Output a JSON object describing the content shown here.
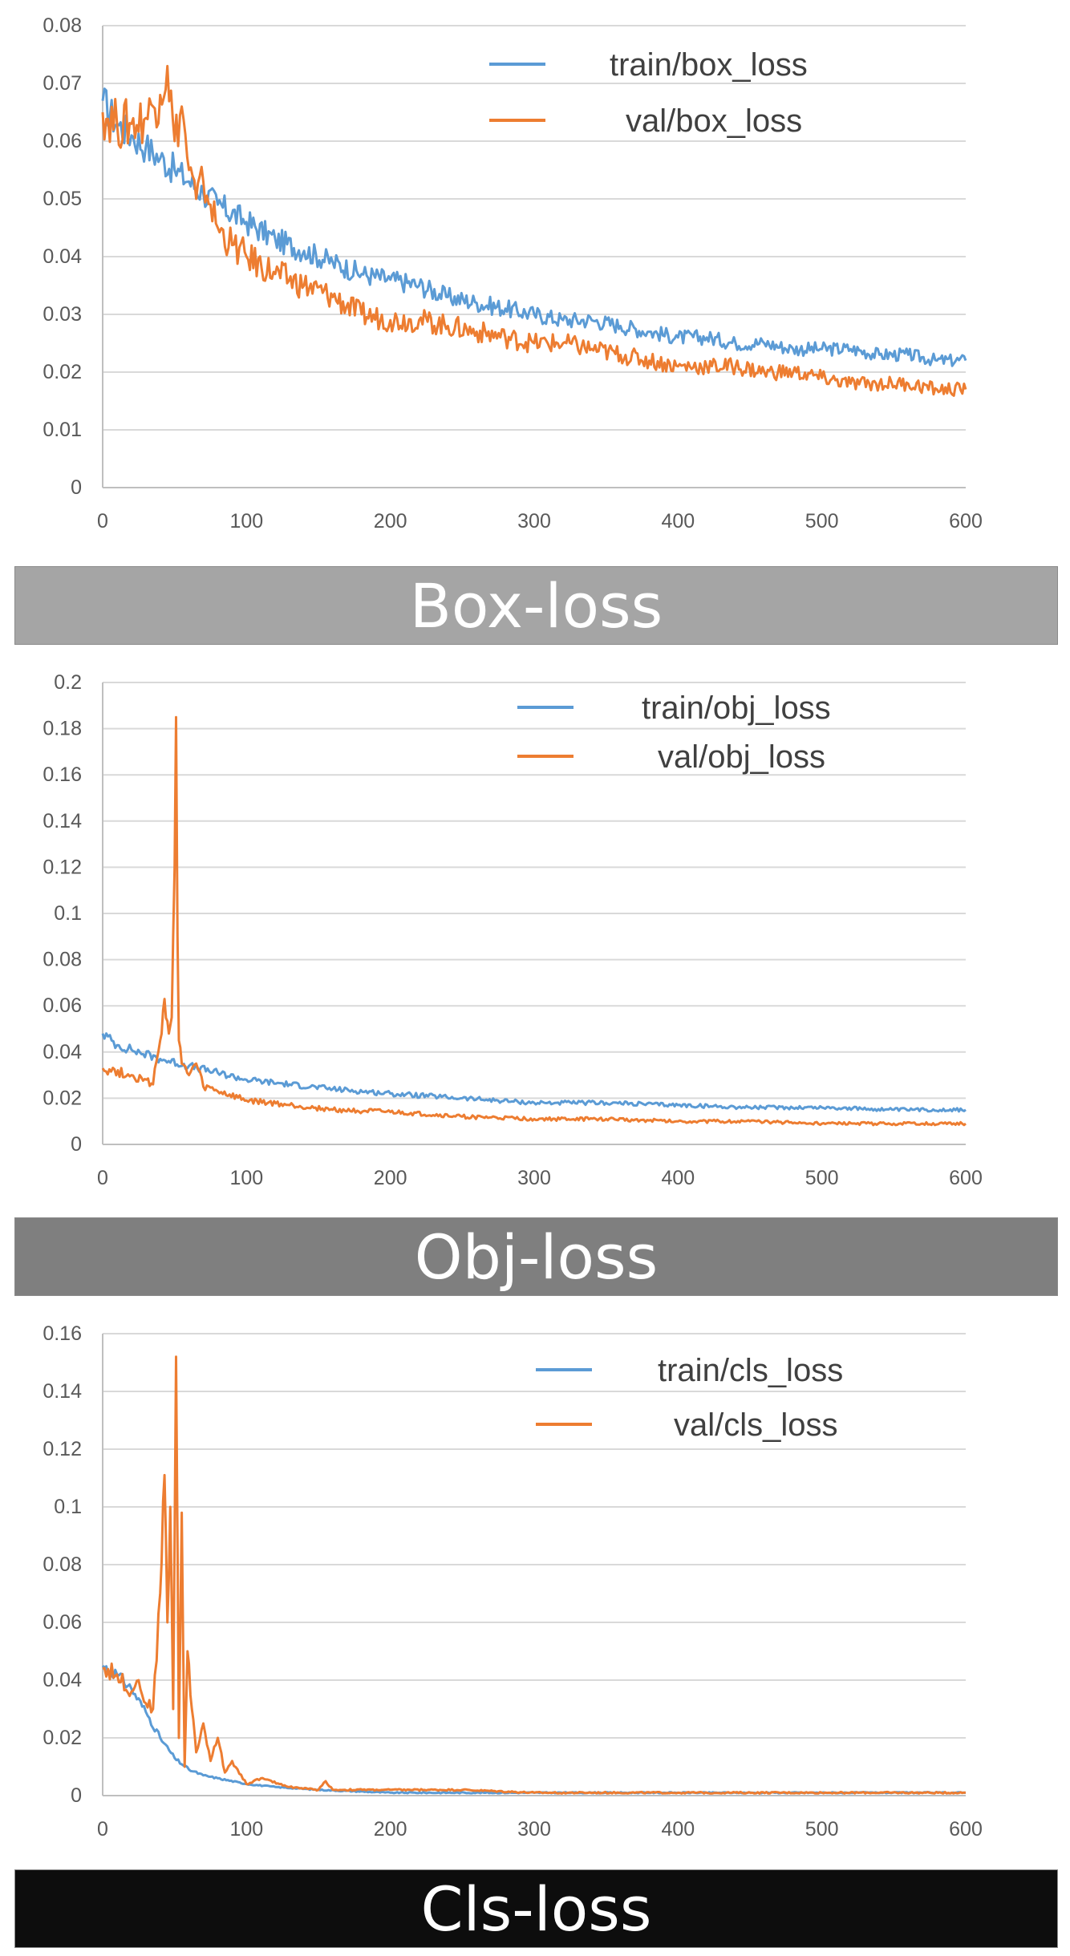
{
  "colors": {
    "train": "#5b9bd5",
    "val": "#ed7d31",
    "grid": "#d9d9d9",
    "axis": "#bfbfbf"
  },
  "chart_data": [
    {
      "type": "line",
      "title": "Box-loss",
      "banner_color": "#a5a5a5",
      "xlim": [
        0,
        600
      ],
      "ylim": [
        0,
        0.08
      ],
      "x_ticks": [
        "0",
        "100",
        "200",
        "300",
        "400",
        "500",
        "600"
      ],
      "y_ticks": [
        "0",
        "0.01",
        "0.02",
        "0.03",
        "0.04",
        "0.05",
        "0.06",
        "0.07",
        "0.08"
      ],
      "series": [
        {
          "name": "train/box_loss",
          "color": "#5b9bd5",
          "x": [
            0,
            10,
            20,
            30,
            40,
            50,
            60,
            70,
            80,
            100,
            120,
            140,
            160,
            180,
            200,
            220,
            240,
            260,
            280,
            300,
            320,
            340,
            360,
            380,
            400,
            420,
            440,
            460,
            480,
            500,
            520,
            540,
            560,
            580,
            600
          ],
          "y": [
            0.067,
            0.063,
            0.061,
            0.059,
            0.057,
            0.055,
            0.053,
            0.051,
            0.049,
            0.046,
            0.043,
            0.041,
            0.039,
            0.037,
            0.036,
            0.035,
            0.033,
            0.032,
            0.031,
            0.03,
            0.029,
            0.029,
            0.028,
            0.027,
            0.026,
            0.026,
            0.025,
            0.025,
            0.024,
            0.024,
            0.024,
            0.023,
            0.023,
            0.022,
            0.022
          ]
        },
        {
          "name": "val/box_loss",
          "color": "#ed7d31",
          "x": [
            0,
            10,
            20,
            30,
            35,
            40,
            45,
            50,
            55,
            60,
            65,
            70,
            75,
            80,
            90,
            100,
            120,
            140,
            160,
            180,
            200,
            220,
            240,
            260,
            280,
            300,
            320,
            340,
            360,
            380,
            400,
            420,
            440,
            460,
            480,
            500,
            520,
            540,
            560,
            580,
            600
          ],
          "y": [
            0.065,
            0.063,
            0.063,
            0.064,
            0.066,
            0.068,
            0.073,
            0.06,
            0.066,
            0.055,
            0.05,
            0.053,
            0.049,
            0.045,
            0.042,
            0.04,
            0.037,
            0.035,
            0.033,
            0.03,
            0.029,
            0.029,
            0.028,
            0.027,
            0.026,
            0.025,
            0.025,
            0.024,
            0.023,
            0.022,
            0.021,
            0.021,
            0.021,
            0.02,
            0.02,
            0.019,
            0.018,
            0.018,
            0.018,
            0.017,
            0.017
          ]
        }
      ]
    },
    {
      "type": "line",
      "title": "Obj-loss",
      "banner_color": "#7f7f7f",
      "xlim": [
        0,
        600
      ],
      "ylim": [
        0,
        0.2
      ],
      "x_ticks": [
        "0",
        "100",
        "200",
        "300",
        "400",
        "500",
        "600"
      ],
      "y_ticks": [
        "0",
        "0.02",
        "0.04",
        "0.06",
        "0.08",
        "0.1",
        "0.12",
        "0.14",
        "0.16",
        "0.18",
        "0.2"
      ],
      "series": [
        {
          "name": "train/obj_loss",
          "color": "#5b9bd5",
          "x": [
            0,
            10,
            20,
            40,
            60,
            80,
            100,
            130,
            160,
            200,
            250,
            300,
            350,
            400,
            450,
            500,
            550,
            600
          ],
          "y": [
            0.048,
            0.043,
            0.041,
            0.037,
            0.034,
            0.031,
            0.028,
            0.026,
            0.024,
            0.022,
            0.02,
            0.018,
            0.018,
            0.017,
            0.016,
            0.016,
            0.015,
            0.015
          ]
        },
        {
          "name": "val/obj_loss",
          "color": "#ed7d31",
          "x": [
            0,
            20,
            35,
            40,
            43,
            46,
            48,
            50,
            51,
            52,
            53,
            55,
            60,
            65,
            70,
            80,
            100,
            130,
            160,
            200,
            250,
            300,
            350,
            400,
            450,
            500,
            550,
            600
          ],
          "y": [
            0.033,
            0.03,
            0.026,
            0.045,
            0.063,
            0.048,
            0.055,
            0.12,
            0.185,
            0.09,
            0.045,
            0.035,
            0.03,
            0.035,
            0.025,
            0.023,
            0.019,
            0.017,
            0.015,
            0.014,
            0.012,
            0.011,
            0.011,
            0.01,
            0.01,
            0.009,
            0.009,
            0.009
          ]
        }
      ]
    },
    {
      "type": "line",
      "title": "Cls-loss",
      "banner_color": "#0d0d0d",
      "xlim": [
        0,
        600
      ],
      "ylim": [
        0,
        0.16
      ],
      "x_ticks": [
        "0",
        "100",
        "200",
        "300",
        "400",
        "500",
        "600"
      ],
      "y_ticks": [
        "0",
        "0.02",
        "0.04",
        "0.06",
        "0.08",
        "0.1",
        "0.12",
        "0.14",
        "0.16"
      ],
      "series": [
        {
          "name": "train/cls_loss",
          "color": "#5b9bd5",
          "x": [
            0,
            10,
            20,
            30,
            40,
            50,
            60,
            70,
            80,
            100,
            120,
            150,
            200,
            300,
            400,
            500,
            600
          ],
          "y": [
            0.045,
            0.042,
            0.037,
            0.029,
            0.02,
            0.013,
            0.009,
            0.007,
            0.006,
            0.004,
            0.003,
            0.002,
            0.001,
            0.001,
            0.001,
            0.001,
            0.001
          ]
        },
        {
          "name": "val/cls_loss",
          "color": "#ed7d31",
          "x": [
            0,
            10,
            20,
            25,
            30,
            35,
            40,
            43,
            45,
            47,
            49,
            51,
            53,
            55,
            57,
            59,
            62,
            65,
            70,
            75,
            80,
            85,
            90,
            100,
            110,
            130,
            150,
            155,
            160,
            200,
            250,
            300,
            400,
            500,
            600
          ],
          "y": [
            0.044,
            0.042,
            0.036,
            0.04,
            0.032,
            0.03,
            0.07,
            0.111,
            0.06,
            0.1,
            0.03,
            0.152,
            0.02,
            0.098,
            0.01,
            0.05,
            0.03,
            0.015,
            0.025,
            0.012,
            0.02,
            0.008,
            0.012,
            0.004,
            0.006,
            0.003,
            0.002,
            0.005,
            0.002,
            0.002,
            0.002,
            0.001,
            0.001,
            0.001,
            0.001
          ]
        }
      ]
    }
  ]
}
